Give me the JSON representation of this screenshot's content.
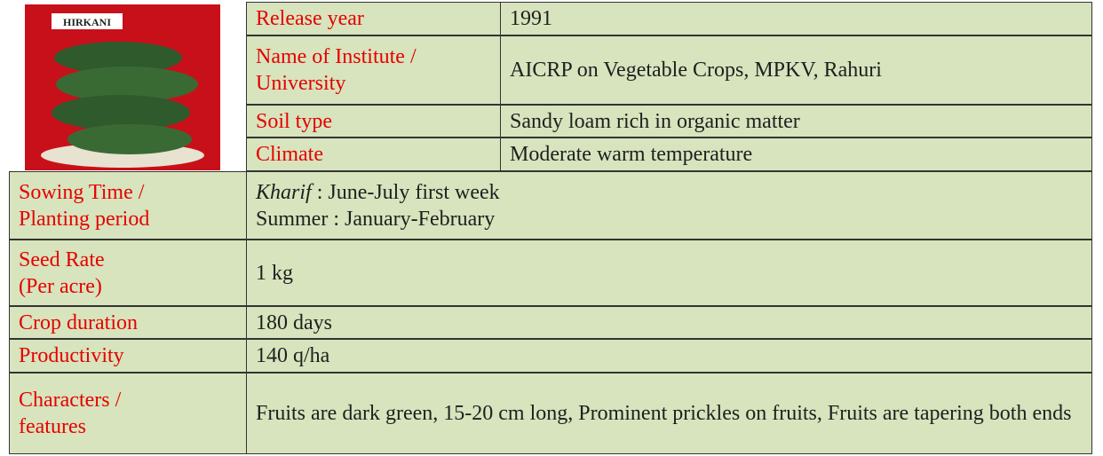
{
  "image": {
    "label": "HIRKANI"
  },
  "table": {
    "top": [
      {
        "label": [
          "Release year"
        ],
        "value": [
          "1991"
        ]
      },
      {
        "label": [
          "Name of Institute /",
          "University"
        ],
        "value": [
          "AICRP on Vegetable Crops, MPKV, Rahuri"
        ]
      },
      {
        "label": [
          "Soil type"
        ],
        "value": [
          "Sandy loam rich in organic matter"
        ]
      },
      {
        "label": [
          "Climate"
        ],
        "value": [
          "Moderate warm temperature"
        ]
      }
    ],
    "bottom": [
      {
        "label": [
          "Sowing Time  /",
          "Planting  period"
        ],
        "value": [
          [
            "Kharif",
            " : June-July first week"
          ],
          "Summer : January-February"
        ]
      },
      {
        "label": [
          "Seed Rate",
          "(Per acre)"
        ],
        "value": [
          "1 kg"
        ]
      },
      {
        "label": [
          "Crop duration"
        ],
        "value": [
          "180 days"
        ]
      },
      {
        "label": [
          "Productivity"
        ],
        "value": [
          "140 q/ha"
        ]
      },
      {
        "label": [
          "Characters /",
          "features"
        ],
        "value": [
          "Fruits are dark green, 15-20 cm long, Prominent prickles on fruits, Fruits are tapering both ends"
        ]
      }
    ]
  }
}
